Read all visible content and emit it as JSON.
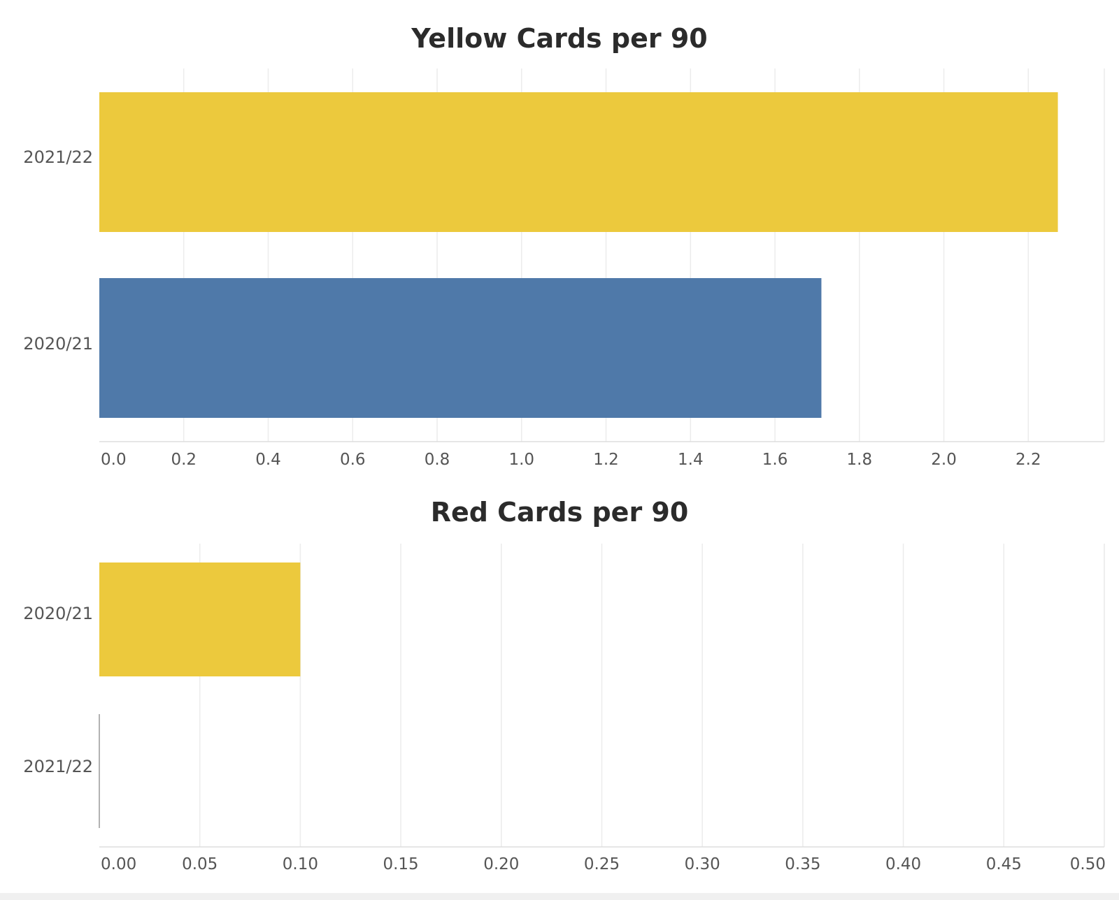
{
  "chart_data": [
    {
      "type": "bar",
      "orientation": "horizontal",
      "title": "Yellow Cards per 90",
      "categories": [
        "2021/22",
        "2020/21"
      ],
      "values": [
        2.27,
        1.71
      ],
      "bar_colors": [
        "#ECC93D",
        "#4F79A9"
      ],
      "xlim": [
        0,
        2.38
      ],
      "xticks": [
        "0.0",
        "0.2",
        "0.4",
        "0.6",
        "0.8",
        "1.0",
        "1.2",
        "1.4",
        "1.6",
        "1.8",
        "2.0",
        "2.2"
      ],
      "grid": true
    },
    {
      "type": "bar",
      "orientation": "horizontal",
      "title": "Red Cards per 90",
      "categories": [
        "2020/21",
        "2021/22"
      ],
      "values": [
        0.1,
        0.0
      ],
      "bar_colors": [
        "#ECC93D",
        "#4F79A9"
      ],
      "xlim": [
        0,
        0.5
      ],
      "xticks": [
        "0.00",
        "0.05",
        "0.10",
        "0.15",
        "0.20",
        "0.25",
        "0.30",
        "0.35",
        "0.40",
        "0.45",
        "0.50"
      ],
      "grid": true
    }
  ]
}
